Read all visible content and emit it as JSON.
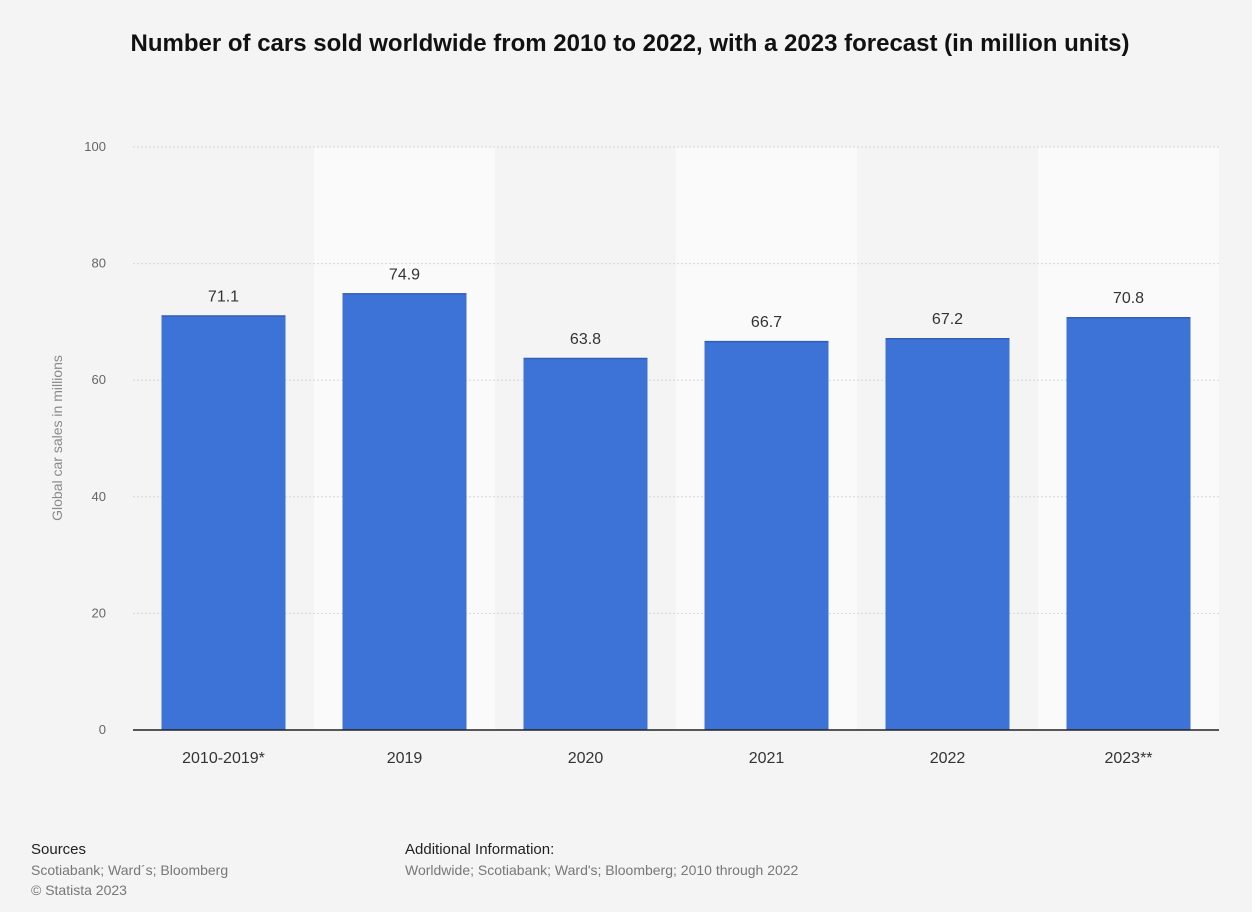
{
  "chart_data": {
    "type": "bar",
    "title": "Number of cars sold worldwide from 2010 to 2022, with a 2023 forecast (in million units)",
    "xlabel": "",
    "ylabel": "Global car sales in millions",
    "categories": [
      "2010-2019*",
      "2019",
      "2020",
      "2021",
      "2022",
      "2023**"
    ],
    "values": [
      71.1,
      74.9,
      63.8,
      66.7,
      67.2,
      70.8
    ],
    "value_labels": [
      "71.1",
      "74.9",
      "63.8",
      "66.7",
      "67.2",
      "70.8"
    ],
    "ylim": [
      0,
      100
    ],
    "yticks": [
      0,
      20,
      40,
      60,
      80,
      100
    ],
    "grid": true,
    "legend": "none",
    "bar_color": "#3d72d7"
  },
  "footer": {
    "sources_heading": "Sources",
    "sources_text": "Scotiabank; Ward´s; Bloomberg",
    "copyright": "© Statista 2023",
    "additional_heading": "Additional Information:",
    "additional_text": "Worldwide; Scotiabank; Ward's; Bloomberg; 2010 through 2022"
  }
}
